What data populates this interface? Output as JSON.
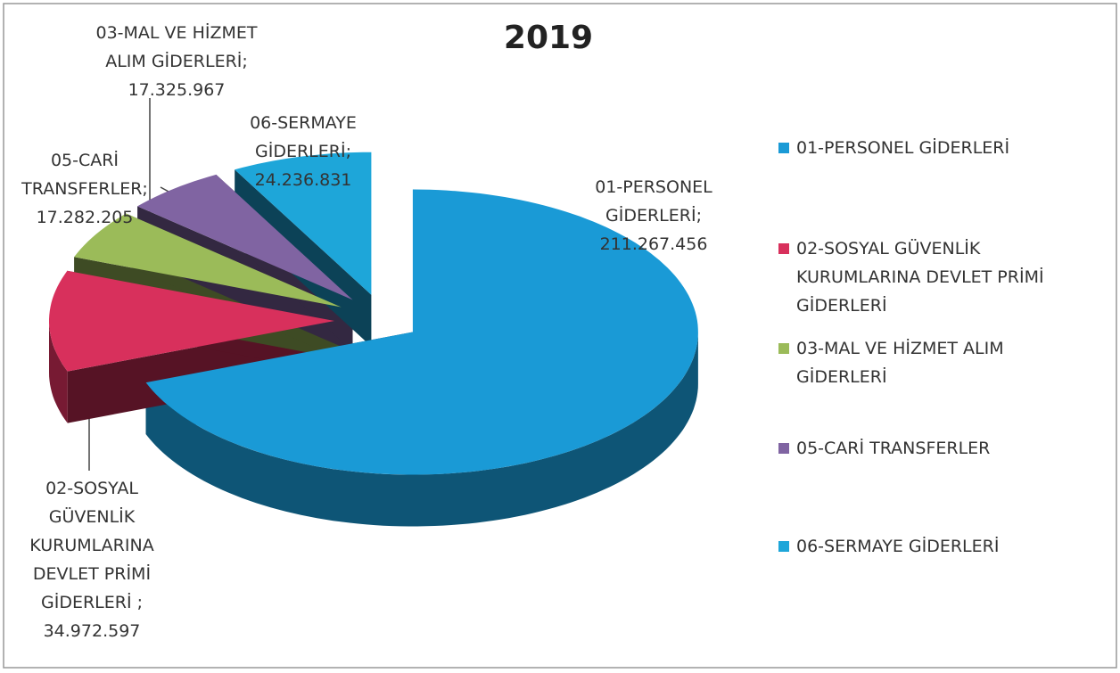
{
  "chart_data": {
    "type": "pie",
    "title": "2019",
    "categories": [
      "01-PERSONEL GİDERLERİ",
      "02-SOSYAL GÜVENLİK KURUMLARINA DEVLET PRİMİ GİDERLERİ",
      "03-MAL VE HİZMET ALIM GİDERLERİ",
      "05-CARİ TRANSFERLER",
      "06-SERMAYE GİDERLERİ"
    ],
    "values": [
      211267456,
      34972597,
      17325967,
      17282205,
      24236831
    ],
    "value_labels": [
      "01-PERSONEL GİDERLERİ; 211.267.456",
      "02-SOSYAL GÜVENLİK KURUMLARINA DEVLET PRİMİ GİDERLERİ ; 34.972.597",
      "03-MAL VE HİZMET ALIM GİDERLERİ; 17.325.967",
      "05-CARİ TRANSFERLER; 17.282.205",
      "06-SERMAYE GİDERLERİ; 24.236.831"
    ],
    "colors": [
      "#1a9ad6",
      "#d8305c",
      "#9bbb59",
      "#8064a2",
      "#1ea6d9"
    ],
    "legend": "right"
  }
}
